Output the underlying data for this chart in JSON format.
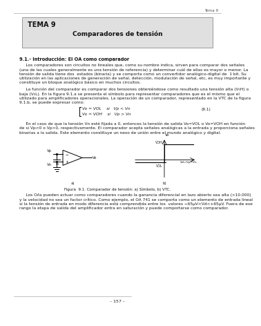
{
  "bg_color": "#ffffff",
  "header_line_color": "#aaaaaa",
  "header_text": "Tema 9",
  "box_bg": "#e0e0e0",
  "box_title": "TEMA 9",
  "box_subtitle": "Comparadores de tensión",
  "section_title": "9.1.- Introducción: El OA como comparador",
  "para1": "     Los comparadores son circuitos no lineales que, como su nombre indica, sirven para comparar dos señales\n(una de las cuales generalmente es una tensión de referencia) y determinar cuál de ellas es mayor o menor. La\ntensión de salida tiene dos  estados (binaria) y se comporta como un convertidor analógico-digital de  1 bit. Su\nutilización en las aplicaciones de generación de señal, detección, modulación de señal, etc, es muy importante y\nconstituye un bloque analógico básico en muchos circuitos.",
  "para2": "     La función del comparador es comparar dos tensiones obteniéndose como resultado una tensión alta (V₀H) o\nbaja (V₀L). En la figura 9.1.a se presenta el símbolo para representar comparadores que es el mismo que el\nutilizado para amplificadores operacionales. La operación de un comparador, representado en la VTC de la figura\n9.1.b, se puede expresar como:",
  "formula_line1": "Vo = VOL    si   Vp < Vn",
  "formula_line2": "Vo = VOH    si   Vp > Vn",
  "formula_ref": "(9.1)",
  "para3": "     En el caso de que la tensión Vn esté fijada a 0, entonces la tensión de salida Vo=VOL o Vo=VOH en función\nde si Vp<0 o Vp>0, respectivamente. El comparador acepta señales analógicas a la entrada y proporciona señales\nbinarias a la salida. Este elemento constituye un nexo de unión entre el mundo analógico y digital.",
  "fig_caption": "Figura  9.1. Comparador de tensión: a) Símbolo, b) VTC.",
  "fig_label_a": "a)",
  "fig_label_b": "b)",
  "para4": "     Los OAs pueden actuar como comparadores cuando la ganancia diferencial en lazo abierto sea alta (>10.000)\ny la velocidad no sea un factor crítico. Como ejemplo, el OA 741 se comporta como un elemento de entrada lineal\nsi la tensión de entrada en modo diferencia está comprendida entre los  valores −65μV<Vd<+65μV. Fuera de ese\nrango la etapa de salida del amplificador entra en saturación y puede comportarse como comparador.",
  "footer_page": "– 157 –",
  "footer_line_color": "#aaaaaa",
  "text_color": "#1a1a1a"
}
